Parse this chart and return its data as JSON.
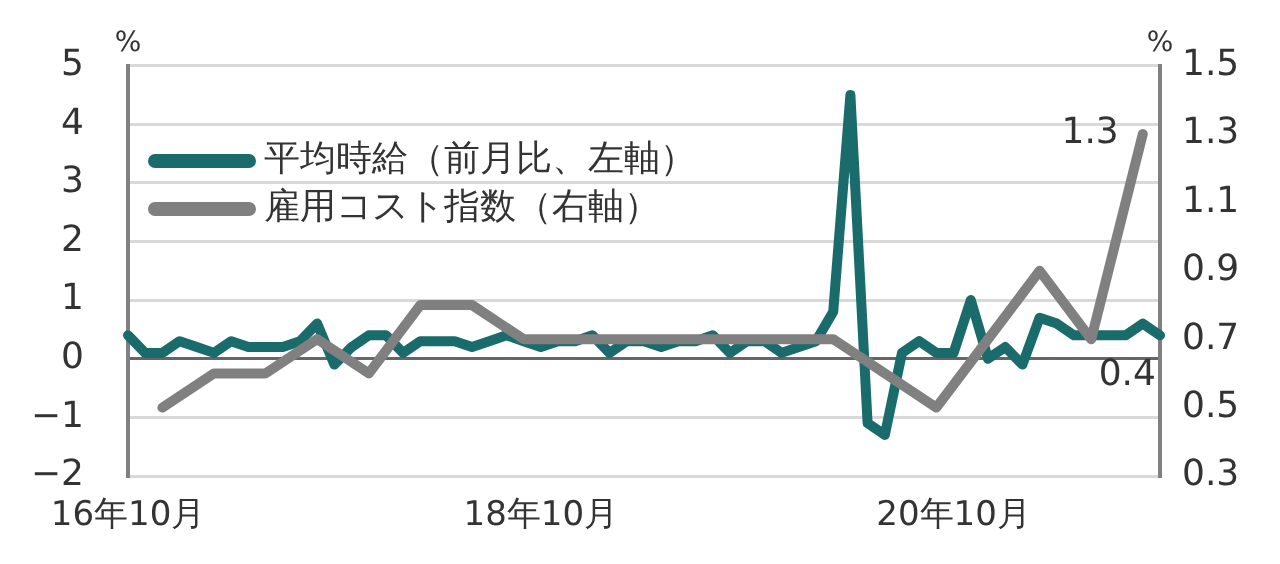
{
  "chart_data": {
    "type": "line",
    "categories": [
      "16年10月",
      null,
      null,
      null,
      null,
      null,
      null,
      null,
      null,
      null,
      null,
      null,
      null,
      null,
      null,
      null,
      null,
      null,
      null,
      null,
      null,
      null,
      null,
      null,
      "18年10月",
      null,
      null,
      null,
      null,
      null,
      null,
      null,
      null,
      null,
      null,
      null,
      null,
      null,
      null,
      null,
      null,
      null,
      null,
      null,
      null,
      null,
      null,
      null,
      "20年10月",
      null,
      null,
      null,
      null,
      null,
      null,
      null,
      null,
      null,
      null,
      null,
      null
    ],
    "series": [
      {
        "name": "平均時給（前月比、左軸）",
        "color": "#1a6b6b",
        "values": [
          0.4,
          0.1,
          0.1,
          0.3,
          0.2,
          0.1,
          0.3,
          0.2,
          0.2,
          0.2,
          0.3,
          0.6,
          -0.1,
          0.2,
          0.4,
          0.4,
          0.1,
          0.3,
          0.3,
          0.3,
          0.2,
          0.3,
          0.4,
          0.3,
          0.2,
          0.3,
          0.3,
          0.4,
          0.1,
          0.3,
          0.3,
          0.2,
          0.3,
          0.3,
          0.4,
          0.1,
          0.3,
          0.3,
          0.1,
          0.2,
          0.3,
          0.8,
          4.5,
          -1.1,
          -1.3,
          0.1,
          0.3,
          0.1,
          0.1,
          1.0,
          0.0,
          0.2,
          -0.1,
          0.7,
          0.6,
          0.4,
          0.4,
          0.4,
          0.4,
          0.6,
          0.4
        ],
        "value_labels": [
          null,
          null,
          null,
          null,
          null,
          null,
          null,
          null,
          null,
          null,
          null,
          null,
          null,
          null,
          null,
          null,
          null,
          null,
          null,
          null,
          null,
          null,
          null,
          null,
          null,
          null,
          null,
          null,
          null,
          null,
          null,
          null,
          null,
          null,
          null,
          null,
          null,
          null,
          null,
          null,
          null,
          null,
          null,
          null,
          null,
          null,
          null,
          null,
          null,
          null,
          null,
          null,
          null,
          null,
          null,
          null,
          null,
          null,
          null,
          null,
          "0.4"
        ]
      },
      {
        "name": "雇用コスト指数（右軸）",
        "color": "#808080",
        "axis": "y2",
        "values": [
          null,
          null,
          0.5,
          null,
          null,
          0.6,
          null,
          null,
          0.6,
          null,
          null,
          0.7,
          null,
          null,
          0.6,
          null,
          null,
          0.8,
          null,
          null,
          0.8,
          null,
          null,
          0.7,
          null,
          null,
          0.7,
          null,
          null,
          0.7,
          null,
          null,
          0.7,
          null,
          null,
          0.7,
          null,
          null,
          0.7,
          null,
          null,
          0.7,
          null,
          null,
          0.6,
          null,
          null,
          0.5,
          null,
          null,
          0.7,
          null,
          null,
          0.9,
          null,
          null,
          0.7,
          null,
          null,
          1.3,
          null
        ],
        "value_labels": [
          null,
          null,
          null,
          null,
          null,
          null,
          null,
          null,
          null,
          null,
          null,
          null,
          null,
          null,
          null,
          null,
          null,
          null,
          null,
          null,
          null,
          null,
          null,
          null,
          null,
          null,
          null,
          null,
          null,
          null,
          null,
          null,
          null,
          null,
          null,
          null,
          null,
          null,
          null,
          null,
          null,
          null,
          null,
          null,
          null,
          null,
          null,
          null,
          null,
          null,
          null,
          null,
          null,
          null,
          null,
          null,
          null,
          null,
          null,
          "1.3",
          null
        ]
      }
    ],
    "ylabel": "%",
    "y2label": "%",
    "ylim": [
      -2,
      5
    ],
    "yticks": [
      -2,
      -1,
      0,
      1,
      2,
      3,
      4,
      5
    ],
    "y2lim": [
      0.3,
      1.5
    ],
    "y2ticks": [
      0.3,
      0.5,
      0.7,
      0.9,
      1.1,
      1.3,
      1.5
    ],
    "grid": "y",
    "legend": "top left",
    "marker": "none",
    "line_style": "solid"
  }
}
